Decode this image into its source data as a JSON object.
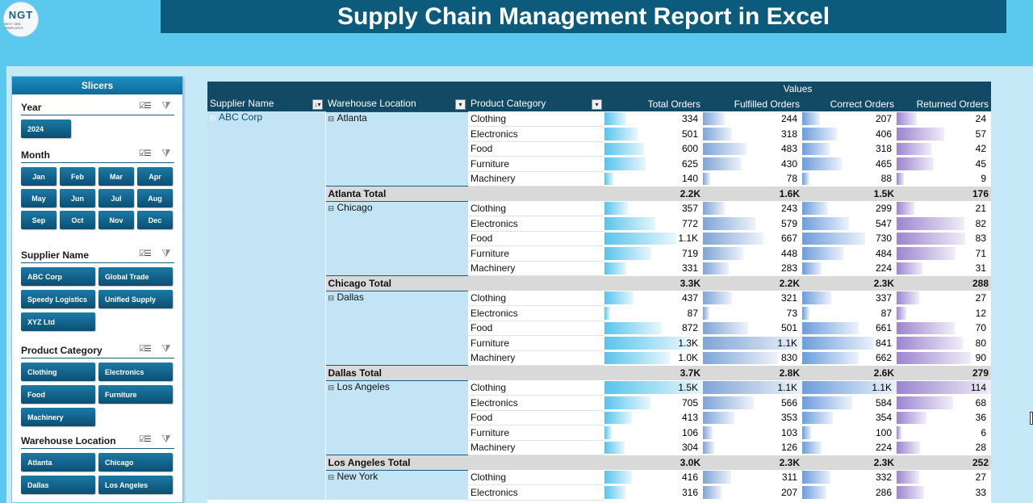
{
  "title": "Supply Chain Management Report in Excel",
  "logo": {
    "text": "NGT",
    "subtext": "NEXT GEN TEMPLATES"
  },
  "colors": {
    "header": "#0c5b7d",
    "chip": "#0c4f73",
    "background": "#5bc8ee"
  },
  "slicers": {
    "heading": "Slicers",
    "year": {
      "title": "Year",
      "items": [
        "2024"
      ]
    },
    "month": {
      "title": "Month",
      "items": [
        "Jan",
        "Feb",
        "Mar",
        "Apr",
        "May",
        "Jun",
        "Jul",
        "Aug",
        "Sep",
        "Oct",
        "Nov",
        "Dec"
      ]
    },
    "supplier": {
      "title": "Supplier Name",
      "items": [
        "ABC Corp",
        "Global Trade",
        "Speedy Logistics",
        "Unified Supply",
        "XYZ Ltd"
      ]
    },
    "category": {
      "title": "Product Category",
      "items": [
        "Clothing",
        "Electronics",
        "Food",
        "Furniture",
        "Machinery"
      ]
    },
    "warehouse": {
      "title": "Warehouse Location",
      "items": [
        "Atlanta",
        "Chicago",
        "Dallas",
        "Los Angeles"
      ]
    },
    "icons": [
      "multi-select-icon",
      "clear-filter-icon"
    ]
  },
  "pivot": {
    "values_caption": "Values",
    "headers": {
      "supplier": "Supplier Name",
      "warehouse": "Warehouse Location",
      "category": "Product Category",
      "total": "Total Orders",
      "fulfilled": "Fulfilled Orders",
      "correct": "Correct Orders",
      "returned": "Returned Orders"
    },
    "supplier_value": "ABC Corp",
    "groups": [
      {
        "warehouse": "Atlanta",
        "total_label": "Atlanta Total",
        "rows": [
          [
            "Clothing",
            334,
            244,
            207,
            24
          ],
          [
            "Electronics",
            501,
            318,
            406,
            57
          ],
          [
            "Food",
            600,
            483,
            318,
            42
          ],
          [
            "Furniture",
            625,
            430,
            465,
            45
          ],
          [
            "Machinery",
            140,
            78,
            88,
            9
          ]
        ],
        "totals": [
          "2.2K",
          "1.6K",
          "1.5K",
          "176"
        ]
      },
      {
        "warehouse": "Chicago",
        "total_label": "Chicago Total",
        "rows": [
          [
            "Clothing",
            357,
            243,
            299,
            21
          ],
          [
            "Electronics",
            772,
            579,
            547,
            82
          ],
          [
            "Food",
            "1.1K",
            667,
            730,
            83
          ],
          [
            "Furniture",
            719,
            448,
            484,
            71
          ],
          [
            "Machinery",
            331,
            283,
            224,
            31
          ]
        ],
        "totals": [
          "3.3K",
          "2.2K",
          "2.3K",
          "288"
        ]
      },
      {
        "warehouse": "Dallas",
        "total_label": "Dallas Total",
        "rows": [
          [
            "Clothing",
            437,
            321,
            337,
            27
          ],
          [
            "Electronics",
            87,
            73,
            87,
            12
          ],
          [
            "Food",
            872,
            501,
            661,
            70
          ],
          [
            "Furniture",
            "1.3K",
            "1.1K",
            841,
            80
          ],
          [
            "Machinery",
            "1.0K",
            830,
            662,
            90
          ]
        ],
        "totals": [
          "3.7K",
          "2.8K",
          "2.6K",
          "279"
        ]
      },
      {
        "warehouse": "Los Angeles",
        "total_label": "Los Angeles Total",
        "rows": [
          [
            "Clothing",
            "1.5K",
            "1.1K",
            "1.1K",
            114
          ],
          [
            "Electronics",
            705,
            566,
            584,
            68
          ],
          [
            "Food",
            413,
            353,
            354,
            36
          ],
          [
            "Furniture",
            106,
            103,
            100,
            6
          ],
          [
            "Machinery",
            304,
            126,
            224,
            28
          ]
        ],
        "totals": [
          "3.0K",
          "2.3K",
          "2.3K",
          "252"
        ]
      },
      {
        "warehouse": "New York",
        "total_label": "",
        "rows": [
          [
            "Clothing",
            416,
            311,
            332,
            27
          ],
          [
            "Electronics",
            316,
            207,
            286,
            33
          ]
        ],
        "totals": []
      }
    ],
    "bar_max": [
      1500,
      1100,
      1100,
      114
    ]
  }
}
